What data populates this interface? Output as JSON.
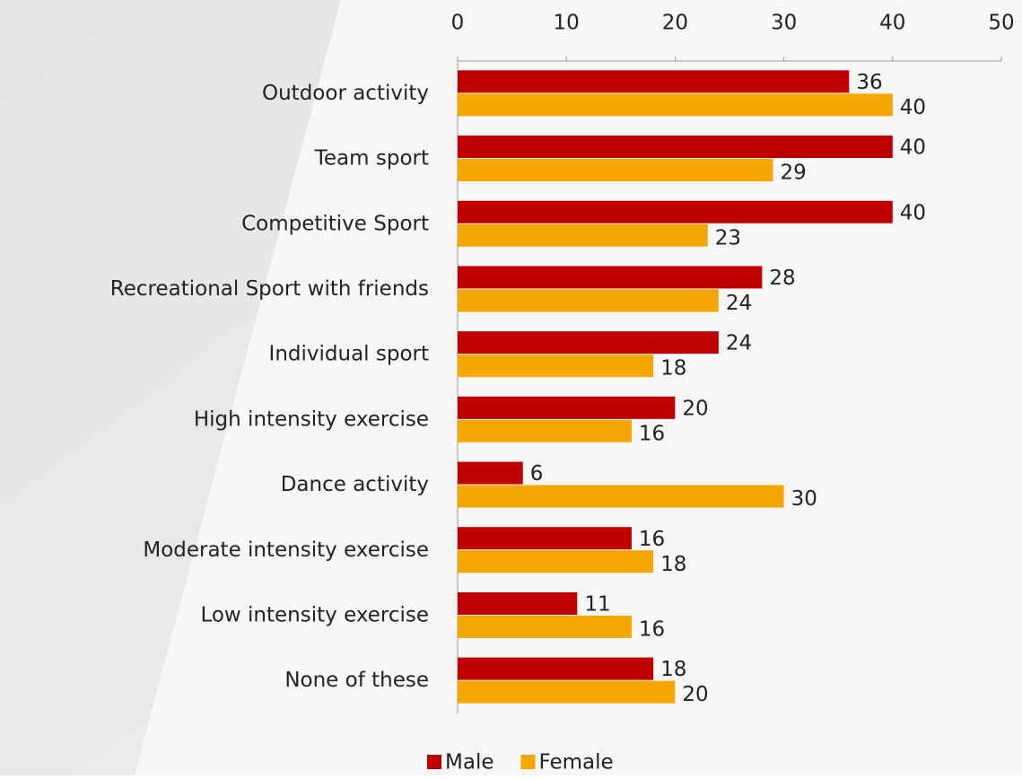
{
  "chart_data": {
    "type": "bar",
    "orientation": "horizontal",
    "categories": [
      "Outdoor activity",
      "Team sport",
      "Competitive Sport",
      "Recreational Sport with friends",
      "Individual sport",
      "High intensity exercise",
      "Dance activity",
      "Moderate intensity exercise",
      "Low intensity exercise",
      "None of these"
    ],
    "series": [
      {
        "name": "Male",
        "color": "#c00000",
        "values": [
          36,
          40,
          40,
          28,
          24,
          20,
          6,
          16,
          11,
          18
        ]
      },
      {
        "name": "Female",
        "color": "#f4a700",
        "values": [
          40,
          29,
          23,
          24,
          18,
          16,
          30,
          18,
          16,
          20
        ]
      }
    ],
    "xlim": [
      0,
      50
    ],
    "xticks": [
      0,
      10,
      20,
      30,
      40,
      50
    ],
    "legend": "bottom"
  }
}
